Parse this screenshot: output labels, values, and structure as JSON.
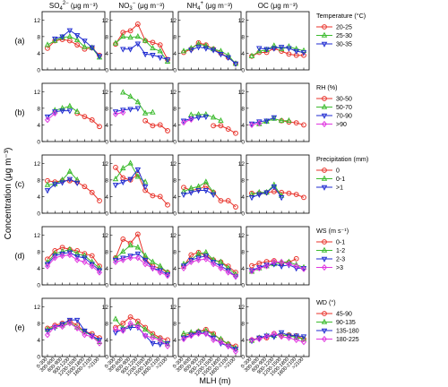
{
  "figure": {
    "ylabel": "Concentration (μg m⁻³)",
    "xlabel": "MLH (m)",
    "columns": [
      {
        "pre": "SO",
        "sub": "4",
        "sup": "2−",
        "post": " (μg m⁻³)"
      },
      {
        "pre": "NO",
        "sub": "3",
        "sup": "−",
        "post": " (μg m⁻³)"
      },
      {
        "pre": "NH",
        "sub": "4",
        "sup": "+",
        "post": " (μg m⁻³)"
      },
      {
        "pre": "OC",
        "sub": "",
        "sup": "",
        "post": " (μg m⁻³)"
      }
    ],
    "row_labels": [
      "(a)",
      "(b)",
      "(c)",
      "(d)",
      "(e)"
    ],
    "x_tick_labels": [
      "0-300",
      "300-600",
      "600-900",
      "900-1200",
      "1200-1500",
      "1500-1800",
      "1800-2100",
      ">2100"
    ],
    "y_ticks": [
      0,
      4,
      8,
      12
    ],
    "y_tick_labels": [
      "0",
      "4",
      "8",
      "12"
    ]
  },
  "chart_data": {
    "type": "line",
    "x": [
      "0-300",
      "300-600",
      "600-900",
      "900-1200",
      "1200-1500",
      "1500-1800",
      "1800-2100",
      ">2100"
    ],
    "ylim": [
      0,
      14
    ],
    "ylabel": "Concentration (μg m⁻³)",
    "xlabel": "MLH (m)",
    "grid": false,
    "legend_position": "right",
    "rows": [
      {
        "label": "(a)",
        "legend_title": "Temperature (°C)",
        "series": [
          {
            "name": "20-25",
            "color": "#e8332b",
            "marker": "circle",
            "values": {
              "SO4": [
                5.2,
                7.0,
                7.3,
                7.0,
                6.0,
                5.0,
                5.3,
                3.5
              ],
              "NO3": [
                6.2,
                9.0,
                9.4,
                11.0,
                7.0,
                6.6,
                6.0,
                2.5
              ],
              "NH4": [
                4.2,
                5.0,
                6.5,
                6.0,
                5.0,
                4.0,
                3.0,
                1.5
              ],
              "OC": [
                3.3,
                4.2,
                4.2,
                5.2,
                4.5,
                3.8,
                3.5,
                3.5
              ]
            }
          },
          {
            "name": "25-30",
            "color": "#3dbb2f",
            "marker": "triangle-up",
            "values": {
              "SO4": [
                6.0,
                7.0,
                7.8,
                8.0,
                7.2,
                5.5,
                5.3,
                3.0
              ],
              "NO3": [
                6.4,
                8.0,
                7.8,
                8.0,
                7.0,
                5.2,
                4.5,
                2.0
              ],
              "NH4": [
                4.5,
                5.2,
                6.2,
                5.8,
                5.0,
                4.5,
                3.5,
                1.5
              ],
              "OC": [
                3.3,
                4.5,
                4.8,
                5.8,
                5.0,
                5.6,
                5.0,
                4.6
              ]
            }
          },
          {
            "name": "30-35",
            "color": "#1f2bd1",
            "marker": "triangle-down",
            "values": {
              "SO4": [
                null,
                7.5,
                8.0,
                9.5,
                8.3,
                7.0,
                5.4,
                3.3
              ],
              "NO3": [
                null,
                5.0,
                5.0,
                6.3,
                3.8,
                3.6,
                3.0,
                2.5
              ],
              "NH4": [
                null,
                4.8,
                5.5,
                5.2,
                4.8,
                3.8,
                3.0,
                1.5
              ],
              "OC": [
                null,
                5.2,
                5.0,
                5.2,
                5.5,
                5.2,
                4.5,
                4.2
              ]
            }
          }
        ]
      },
      {
        "label": "(b)",
        "legend_title": "RH (%)",
        "series": [
          {
            "name": "30-50",
            "color": "#e8332b",
            "marker": "circle",
            "values": {
              "SO4": [
                null,
                null,
                null,
                null,
                6.8,
                6.0,
                5.2,
                3.6
              ],
              "NO3": [
                null,
                null,
                null,
                null,
                5.0,
                3.8,
                4.0,
                2.6
              ],
              "NH4": [
                null,
                null,
                null,
                null,
                3.8,
                3.8,
                3.0,
                2.0
              ],
              "OC": [
                null,
                null,
                null,
                null,
                5.0,
                4.7,
                4.5,
                4.0
              ]
            }
          },
          {
            "name": "50-70",
            "color": "#3dbb2f",
            "marker": "triangle-up",
            "values": {
              "SO4": [
                null,
                7.5,
                8.0,
                8.5,
                7.2,
                null,
                null,
                null
              ],
              "NO3": [
                null,
                11.8,
                10.8,
                9.5,
                6.8,
                7.0,
                null,
                null
              ],
              "NH4": [
                null,
                6.4,
                6.5,
                6.5,
                5.8,
                5.0,
                null,
                null
              ],
              "OC": [
                null,
                4.2,
                4.8,
                5.5,
                5.0,
                5.0,
                null,
                null
              ]
            }
          },
          {
            "name": "70-90",
            "color": "#1f2bd1",
            "marker": "triangle-down",
            "values": {
              "SO4": [
                6.0,
                7.2,
                7.4,
                7.4,
                null,
                null,
                null,
                null
              ],
              "NO3": [
                7.2,
                7.6,
                7.8,
                8.0,
                null,
                null,
                null,
                null
              ],
              "NH4": [
                5.0,
                5.5,
                5.8,
                6.0,
                null,
                null,
                null,
                null
              ],
              "OC": [
                4.3,
                4.8,
                5.0,
                5.8,
                null,
                null,
                null,
                null
              ]
            }
          },
          {
            "name": ">90",
            "color": "#e037e0",
            "marker": "diamond",
            "values": {
              "SO4": [
                5.2,
                6.8,
                null,
                null,
                null,
                null,
                null,
                null
              ],
              "NO3": [
                6.6,
                7.0,
                null,
                null,
                null,
                null,
                null,
                null
              ],
              "NH4": [
                4.6,
                5.3,
                null,
                null,
                null,
                null,
                null,
                null
              ],
              "OC": [
                4.0,
                4.4,
                null,
                null,
                null,
                null,
                null,
                null
              ]
            }
          }
        ]
      },
      {
        "label": "(c)",
        "legend_title": "Precipitation (mm)",
        "series": [
          {
            "name": "0",
            "color": "#e8332b",
            "marker": "circle",
            "values": {
              "SO4": [
                7.8,
                7.5,
                7.8,
                7.8,
                7.5,
                6.4,
                5.0,
                3.0
              ],
              "NO3": [
                11.0,
                8.5,
                8.0,
                9.3,
                5.5,
                4.2,
                4.0,
                2.0
              ],
              "NH4": [
                6.2,
                5.5,
                5.8,
                6.5,
                5.0,
                3.0,
                3.0,
                1.5
              ],
              "OC": [
                4.8,
                4.8,
                5.0,
                5.2,
                5.0,
                4.8,
                4.5,
                3.8
              ]
            }
          },
          {
            "name": "0-1",
            "color": "#3dbb2f",
            "marker": "triangle-up",
            "values": {
              "SO4": [
                6.8,
                7.0,
                8.0,
                10.0,
                8.0,
                null,
                null,
                null
              ],
              "NO3": [
                8.2,
                10.8,
                12.0,
                8.8,
                7.5,
                null,
                null,
                null
              ],
              "NH4": [
                5.2,
                6.0,
                6.4,
                7.5,
                5.0,
                null,
                null,
                null
              ],
              "OC": [
                4.5,
                5.0,
                5.0,
                6.8,
                4.2,
                null,
                null,
                null
              ]
            }
          },
          {
            "name": ">1",
            "color": "#1f2bd1",
            "marker": "triangle-down",
            "values": {
              "SO4": [
                5.5,
                7.0,
                7.4,
                8.2,
                7.3,
                null,
                null,
                null
              ],
              "NO3": [
                6.8,
                7.5,
                8.2,
                10.5,
                6.4,
                null,
                null,
                null
              ],
              "NH4": [
                4.5,
                5.0,
                5.5,
                5.5,
                4.5,
                null,
                null,
                null
              ],
              "OC": [
                3.8,
                4.5,
                5.0,
                6.4,
                3.8,
                null,
                null,
                null
              ]
            }
          }
        ]
      },
      {
        "label": "(d)",
        "legend_title": "WS (m s⁻¹)",
        "series": [
          {
            "name": "0-1",
            "color": "#e8332b",
            "marker": "circle",
            "values": {
              "SO4": [
                6.2,
                8.2,
                9.0,
                8.5,
                8.2,
                7.5,
                7.0,
                4.5
              ],
              "NO3": [
                6.5,
                11.0,
                10.0,
                12.2,
                6.2,
                4.5,
                4.0,
                3.0
              ],
              "NH4": [
                4.5,
                7.2,
                7.8,
                7.0,
                6.0,
                5.5,
                4.5,
                3.0
              ],
              "OC": [
                4.6,
                5.2,
                5.6,
                5.8,
                5.2,
                5.4,
                6.3,
                null
              ]
            }
          },
          {
            "name": "1-2",
            "color": "#3dbb2f",
            "marker": "triangle-up",
            "values": {
              "SO4": [
                5.4,
                7.5,
                8.0,
                8.5,
                7.5,
                7.0,
                5.5,
                4.0
              ],
              "NO3": [
                6.4,
                8.0,
                9.5,
                9.0,
                7.0,
                5.5,
                4.5,
                3.0
              ],
              "NH4": [
                5.0,
                6.0,
                7.5,
                7.8,
                6.0,
                5.5,
                4.0,
                2.5
              ],
              "OC": [
                3.2,
                4.0,
                4.5,
                5.0,
                5.5,
                5.5,
                4.8,
                4.2
              ]
            }
          },
          {
            "name": "2-3",
            "color": "#1f2bd1",
            "marker": "triangle-down",
            "values": {
              "SO4": [
                5.0,
                7.0,
                7.5,
                7.8,
                6.8,
                6.5,
                5.0,
                3.5
              ],
              "NO3": [
                6.0,
                6.5,
                7.0,
                7.5,
                6.0,
                4.0,
                3.5,
                2.5
              ],
              "NH4": [
                4.6,
                6.0,
                6.5,
                7.0,
                5.5,
                4.5,
                3.5,
                2.0
              ],
              "OC": [
                3.5,
                4.2,
                4.8,
                5.0,
                4.5,
                4.8,
                4.0,
                4.0
              ]
            }
          },
          {
            "name": ">3",
            "color": "#e037e0",
            "marker": "diamond",
            "values": {
              "SO4": [
                4.5,
                6.5,
                7.0,
                7.2,
                6.0,
                5.5,
                4.5,
                3.0
              ],
              "NO3": [
                5.5,
                6.0,
                6.5,
                6.5,
                5.0,
                4.0,
                3.0,
                2.2
              ],
              "NH4": [
                4.0,
                5.5,
                6.0,
                6.2,
                5.0,
                4.0,
                3.0,
                2.0
              ],
              "OC": [
                3.3,
                4.0,
                4.5,
                5.5,
                5.5,
                5.0,
                4.5,
                3.8
              ]
            }
          }
        ]
      },
      {
        "label": "(e)",
        "legend_title": "WD (°)",
        "series": [
          {
            "name": "45-90",
            "color": "#e8332b",
            "marker": "circle",
            "values": {
              "SO4": [
                6.8,
                7.5,
                8.0,
                8.5,
                7.5,
                6.0,
                5.5,
                4.5
              ],
              "NO3": [
                7.0,
                8.0,
                9.5,
                8.5,
                7.0,
                5.5,
                4.5,
                4.0
              ],
              "NH4": [
                5.0,
                5.5,
                6.0,
                6.5,
                5.5,
                4.0,
                3.0,
                2.5
              ],
              "OC": [
                4.0,
                4.5,
                4.5,
                5.5,
                5.0,
                5.2,
                5.0,
                4.2
              ]
            }
          },
          {
            "name": "90-135",
            "color": "#3dbb2f",
            "marker": "triangle-up",
            "values": {
              "SO4": [
                6.5,
                7.2,
                7.5,
                8.2,
                7.0,
                6.0,
                5.0,
                3.5
              ],
              "NO3": [
                9.0,
                6.8,
                7.5,
                7.8,
                6.5,
                5.0,
                4.2,
                3.0
              ],
              "NH4": [
                5.5,
                5.8,
                6.0,
                6.2,
                5.2,
                4.2,
                3.0,
                2.0
              ],
              "OC": [
                3.8,
                4.5,
                5.0,
                5.0,
                5.2,
                5.0,
                4.6,
                4.2
              ]
            }
          },
          {
            "name": "135-180",
            "color": "#1f2bd1",
            "marker": "triangle-down",
            "values": {
              "SO4": [
                6.2,
                7.0,
                7.8,
                8.8,
                8.8,
                6.2,
                5.0,
                4.0
              ],
              "NO3": [
                5.8,
                6.5,
                7.0,
                7.0,
                5.0,
                3.2,
                3.0,
                3.2
              ],
              "NH4": [
                4.5,
                5.2,
                5.8,
                5.5,
                4.5,
                3.2,
                2.5,
                1.8
              ],
              "OC": [
                3.8,
                4.5,
                5.0,
                4.8,
                5.8,
                5.0,
                5.0,
                4.8
              ]
            }
          },
          {
            "name": "180-225",
            "color": "#e037e0",
            "marker": "diamond",
            "values": {
              "SO4": [
                5.2,
                7.2,
                7.2,
                8.0,
                6.8,
                5.2,
                4.8,
                3.2
              ],
              "NO3": [
                6.6,
                6.2,
                8.0,
                7.2,
                5.0,
                4.5,
                4.0,
                2.5
              ],
              "NH4": [
                4.2,
                5.0,
                5.5,
                5.5,
                4.0,
                3.5,
                2.5,
                1.2
              ],
              "OC": [
                4.0,
                4.2,
                4.8,
                5.5,
                4.8,
                4.5,
                4.0,
                3.5
              ]
            }
          }
        ]
      }
    ]
  }
}
